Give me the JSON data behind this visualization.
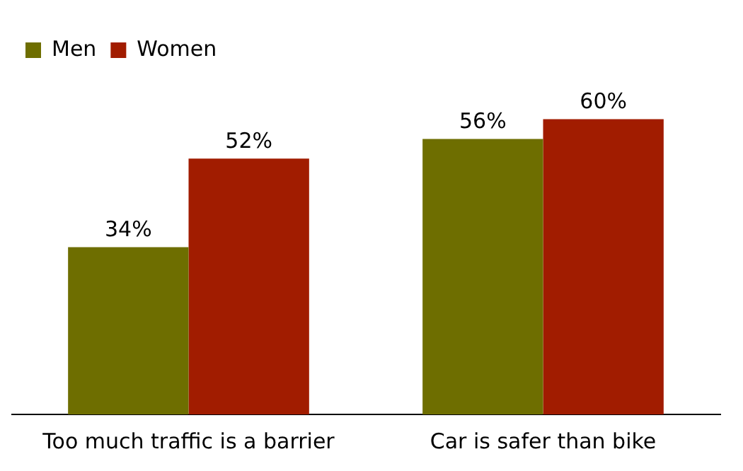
{
  "chart_data": {
    "type": "bar",
    "categories": [
      "Too much traffic is a barrier",
      "Car is safer than bike"
    ],
    "series": [
      {
        "name": "Men",
        "color": "#6e6e00",
        "values": [
          34,
          56
        ],
        "value_labels": [
          "34%",
          "56%"
        ]
      },
      {
        "name": "Women",
        "color": "#a11c00",
        "values": [
          52,
          60
        ],
        "value_labels": [
          "52%",
          "60%"
        ]
      }
    ],
    "legend": "top left",
    "grid": false
  }
}
